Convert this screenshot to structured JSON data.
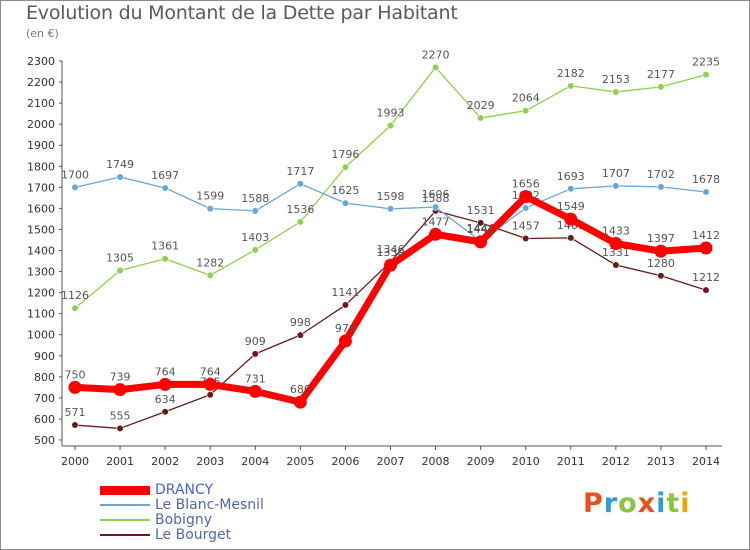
{
  "title": "Evolution du Montant de la Dette par Habitant",
  "unit_label": "(en €)",
  "logo": {
    "text": "Proxiti",
    "colors": [
      "#e94e1b",
      "#2a9fd6",
      "#8cc63f",
      "#e94e1b",
      "#2a9fd6",
      "#8cc63f",
      "#f0a500"
    ]
  },
  "chart_data": {
    "type": "line",
    "x": [
      2000,
      2001,
      2002,
      2003,
      2004,
      2005,
      2006,
      2007,
      2008,
      2009,
      2010,
      2011,
      2012,
      2013,
      2014
    ],
    "ylim": [
      500,
      2300
    ],
    "yticks": [
      500,
      600,
      700,
      800,
      900,
      1000,
      1100,
      1200,
      1300,
      1400,
      1500,
      1600,
      1700,
      1800,
      1900,
      2000,
      2100,
      2200,
      2300
    ],
    "grid": false,
    "legend_position": "bottom-left",
    "series": [
      {
        "name": "Le Bourget",
        "color": "#6b1a1a",
        "values": [
          571,
          555,
          634,
          715,
          909,
          998,
          1141,
          1346,
          1588,
          1531,
          1457,
          1460,
          1331,
          1280,
          1212
        ]
      },
      {
        "name": "Bobigny",
        "color": "#8fd14f",
        "values": [
          1126,
          1305,
          1361,
          1282,
          1403,
          1536,
          1796,
          1993,
          2270,
          2029,
          2064,
          2182,
          2153,
          2177,
          2235
        ]
      },
      {
        "name": "Le Blanc-Mesnil",
        "color": "#6aa6d6",
        "values": [
          1700,
          1749,
          1697,
          1599,
          1588,
          1717,
          1625,
          1598,
          1606,
          1444,
          1602,
          1693,
          1707,
          1702,
          1678
        ]
      },
      {
        "name": "DRANCY",
        "color": "#ff0000",
        "values": [
          750,
          739,
          764,
          764,
          731,
          680,
          970,
          1330,
          1477,
          1441,
          1656,
          1549,
          1433,
          1397,
          1412
        ]
      }
    ]
  }
}
